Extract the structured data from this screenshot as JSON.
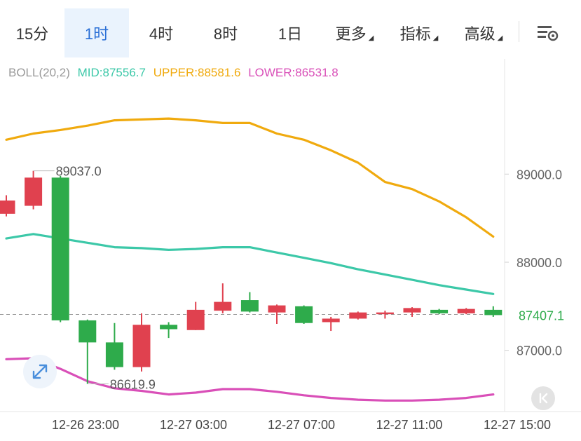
{
  "tabs": [
    {
      "label": "15分",
      "active": false,
      "dropdown": false
    },
    {
      "label": "1时",
      "active": true,
      "dropdown": false
    },
    {
      "label": "4时",
      "active": false,
      "dropdown": false
    },
    {
      "label": "8时",
      "active": false,
      "dropdown": false
    },
    {
      "label": "1日",
      "active": false,
      "dropdown": false
    },
    {
      "label": "更多",
      "active": false,
      "dropdown": true
    },
    {
      "label": "指标",
      "active": false,
      "dropdown": true
    },
    {
      "label": "高级",
      "active": false,
      "dropdown": true
    }
  ],
  "icons": {
    "settings": "chart-settings-icon",
    "expand": "expand-arrows-icon",
    "collapse": "collapse-left-icon"
  },
  "legend": {
    "name": "BOLL(20,2)",
    "mid": "MID:87556.7",
    "upper": "UPPER:88581.6",
    "lower": "LOWER:86531.8"
  },
  "colors": {
    "up": "#e0414f",
    "down": "#2eab4b",
    "mid": "#3cc8a8",
    "upper": "#f0aa0e",
    "lower": "#d94fb8",
    "active_tab": "#2a6fd6",
    "legend_label": "#999999"
  },
  "chart_data": {
    "type": "candlestick",
    "x_ticks": [
      "12-26 23:00",
      "12-27 03:00",
      "12-27 07:00",
      "12-27 11:00",
      "12-27 15:00"
    ],
    "y_ticks": [
      87000.0,
      88000.0,
      89000.0
    ],
    "y_tick_labels": [
      "87000.0",
      "88000.0",
      "89000.0"
    ],
    "ylim": [
      86500,
      89600
    ],
    "current_price": "87407.1",
    "annotations": {
      "high": "89037.0",
      "low": "86619.9"
    },
    "candles": [
      {
        "open": 88550,
        "close": 88700,
        "high": 88760,
        "low": 88520
      },
      {
        "open": 88640,
        "close": 88960,
        "high": 89037,
        "low": 88600
      },
      {
        "open": 88960,
        "close": 87340,
        "high": 88980,
        "low": 87320
      },
      {
        "open": 87340,
        "close": 87090,
        "high": 87350,
        "low": 86620
      },
      {
        "open": 87090,
        "close": 86810,
        "high": 87310,
        "low": 86780
      },
      {
        "open": 86810,
        "close": 87290,
        "high": 87420,
        "low": 86760
      },
      {
        "open": 87290,
        "close": 87240,
        "high": 87320,
        "low": 87140
      },
      {
        "open": 87230,
        "close": 87460,
        "high": 87550,
        "low": 87230
      },
      {
        "open": 87450,
        "close": 87550,
        "high": 87760,
        "low": 87420
      },
      {
        "open": 87570,
        "close": 87440,
        "high": 87660,
        "low": 87430
      },
      {
        "open": 87430,
        "close": 87510,
        "high": 87520,
        "low": 87300
      },
      {
        "open": 87500,
        "close": 87310,
        "high": 87510,
        "low": 87300
      },
      {
        "open": 87320,
        "close": 87360,
        "high": 87380,
        "low": 87220
      },
      {
        "open": 87360,
        "close": 87430,
        "high": 87440,
        "low": 87350
      },
      {
        "open": 87410,
        "close": 87430,
        "high": 87450,
        "low": 87360
      },
      {
        "open": 87430,
        "close": 87480,
        "high": 87490,
        "low": 87380
      },
      {
        "open": 87460,
        "close": 87420,
        "high": 87470,
        "low": 87410
      },
      {
        "open": 87420,
        "close": 87470,
        "high": 87480,
        "low": 87410
      },
      {
        "open": 87460,
        "close": 87400,
        "high": 87500,
        "low": 87380
      }
    ],
    "bollinger": {
      "upper": [
        89390,
        89460,
        89500,
        89550,
        89610,
        89620,
        89630,
        89610,
        89580,
        89580,
        89460,
        89390,
        89270,
        89130,
        88910,
        88830,
        88690,
        88510,
        88290
      ],
      "mid": [
        88270,
        88320,
        88270,
        88220,
        88170,
        88160,
        88140,
        88150,
        88170,
        88170,
        88110,
        88050,
        87990,
        87920,
        87860,
        87800,
        87740,
        87690,
        87640
      ],
      "lower": [
        86900,
        86910,
        86790,
        86650,
        86570,
        86540,
        86500,
        86520,
        86560,
        86560,
        86530,
        86490,
        86460,
        86440,
        86430,
        86430,
        86440,
        86460,
        86500
      ]
    }
  }
}
